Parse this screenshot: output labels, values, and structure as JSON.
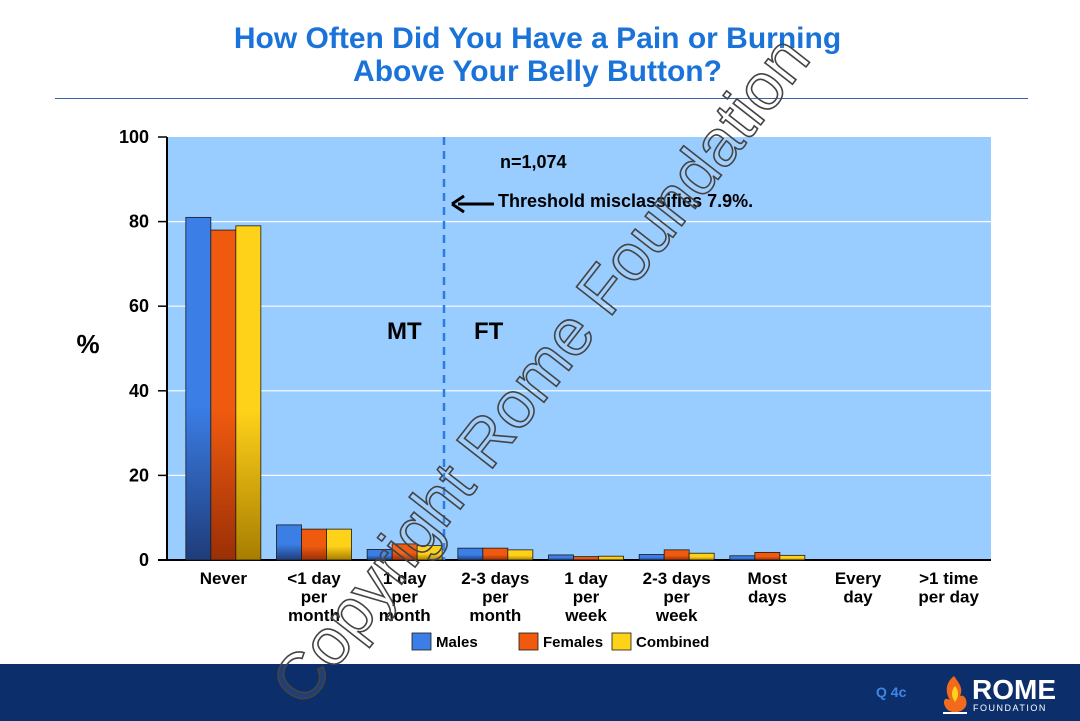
{
  "title_line1": "How Often Did You Have a Pain or Burning",
  "title_line2": "Above Your Belly Button?",
  "footer": {
    "question_label": "Q 4c",
    "logo_name": "ROME",
    "logo_sub": "FOUNDATION"
  },
  "watermark": "Copyright Rome Foundation",
  "colors": {
    "males": "#3b7ee6",
    "females": "#ef5a0f",
    "combined": "#ffd21a",
    "plot_bg": "#99ccff",
    "threshold": "#2d7ae0",
    "title": "#1a73d9",
    "footer": "#0c2f6b"
  },
  "chart_data": {
    "type": "bar",
    "ylabel": "%",
    "ylim": [
      0,
      100
    ],
    "yticks": [
      0,
      20,
      40,
      60,
      80,
      100
    ],
    "grid": true,
    "legend_position": "bottom",
    "categories": [
      [
        "Never"
      ],
      [
        "<1 day",
        "per",
        "month"
      ],
      [
        "1 day",
        "per",
        "month"
      ],
      [
        "2-3 days",
        "per",
        "month"
      ],
      [
        "1 day",
        "per",
        "week"
      ],
      [
        "2-3 days",
        "per",
        "week"
      ],
      [
        "Most",
        "days"
      ],
      [
        "Every",
        "day"
      ],
      [
        ">1 time",
        "per day"
      ]
    ],
    "series": [
      {
        "name": "Males",
        "values": [
          81,
          8.3,
          2.5,
          2.8,
          1.2,
          1.3,
          1.0,
          0,
          0
        ]
      },
      {
        "name": "Females",
        "values": [
          78,
          7.3,
          3.8,
          2.8,
          0.8,
          2.4,
          1.8,
          0,
          0
        ]
      },
      {
        "name": "Combined",
        "values": [
          79,
          7.3,
          3.4,
          2.4,
          0.9,
          1.6,
          1.1,
          0,
          0
        ]
      }
    ],
    "annotations": {
      "n": "n=1,074",
      "threshold": "Threshold misclassifies 7.9%.",
      "left_region": "MT",
      "right_region": "FT"
    }
  }
}
